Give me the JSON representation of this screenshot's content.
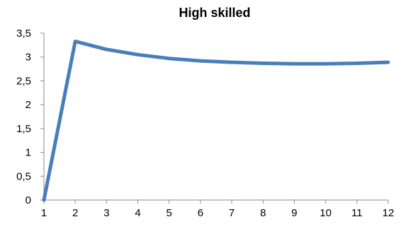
{
  "chart_data": {
    "type": "line",
    "title": "High skilled",
    "xlabel": "",
    "ylabel": "",
    "categories": [
      "1",
      "2",
      "3",
      "4",
      "5",
      "6",
      "7",
      "8",
      "9",
      "10",
      "11",
      "12"
    ],
    "series": [
      {
        "values": [
          0,
          3.33,
          3.16,
          3.05,
          2.97,
          2.92,
          2.89,
          2.87,
          2.86,
          2.86,
          2.87,
          2.89
        ],
        "color": "#4a7ebb"
      }
    ],
    "ylim": [
      0,
      3.5
    ],
    "y_ticks": [
      "0",
      "0,5",
      "1",
      "1,5",
      "2",
      "2,5",
      "3",
      "3,5"
    ],
    "grid": false,
    "legend": "none"
  }
}
